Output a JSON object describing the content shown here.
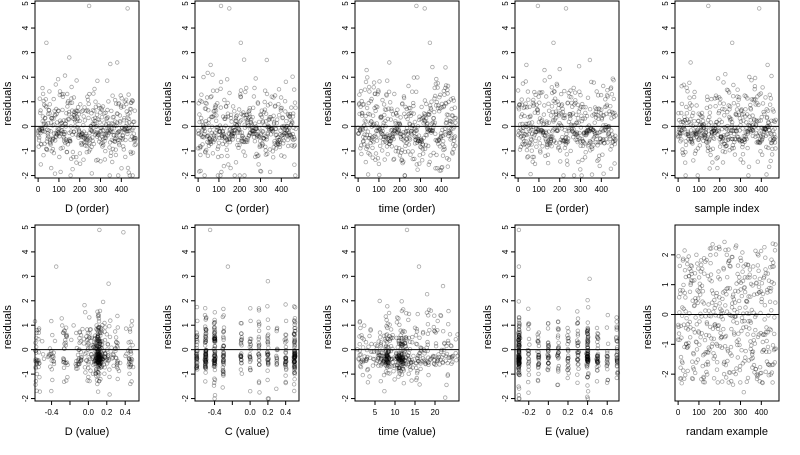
{
  "figure": {
    "description_free": true
  },
  "chart_data": [
    {
      "type": "scatter",
      "xlabel": "D (order)",
      "ylabel": "residuals",
      "xlim": [
        -15,
        485
      ],
      "ylim": [
        -2.1,
        5.1
      ],
      "xticks": [
        0,
        100,
        200,
        300,
        400
      ],
      "yticks": [
        -2,
        -1,
        0,
        1,
        2,
        3,
        4,
        5
      ],
      "hline": 0,
      "n_points": 470,
      "seed": 11,
      "pattern": "order_wave",
      "outliers": [
        [
          40,
          3.4
        ],
        [
          245,
          4.9
        ],
        [
          430,
          4.8
        ],
        [
          150,
          2.8
        ],
        [
          380,
          2.6
        ]
      ]
    },
    {
      "type": "scatter",
      "xlabel": "C (order)",
      "ylabel": "residuals",
      "xlim": [
        -15,
        485
      ],
      "ylim": [
        -2.1,
        5.1
      ],
      "xticks": [
        0,
        100,
        200,
        300,
        400
      ],
      "yticks": [
        -2,
        -1,
        0,
        1,
        2,
        3,
        4,
        5
      ],
      "hline": 0,
      "n_points": 470,
      "seed": 23,
      "pattern": "order_wave",
      "outliers": [
        [
          110,
          4.9
        ],
        [
          150,
          4.8
        ],
        [
          205,
          3.4
        ],
        [
          330,
          2.7
        ],
        [
          60,
          2.5
        ]
      ]
    },
    {
      "type": "scatter",
      "xlabel": "time (order)",
      "ylabel": "residuals",
      "xlim": [
        -15,
        485
      ],
      "ylim": [
        -2.1,
        5.1
      ],
      "xticks": [
        0,
        100,
        200,
        300,
        400
      ],
      "yticks": [
        -2,
        -1,
        0,
        1,
        2,
        3,
        4,
        5
      ],
      "hline": 0,
      "n_points": 470,
      "seed": 37,
      "pattern": "order_wave",
      "outliers": [
        [
          280,
          4.9
        ],
        [
          320,
          4.8
        ],
        [
          345,
          3.4
        ],
        [
          150,
          2.6
        ],
        [
          420,
          2.4
        ]
      ]
    },
    {
      "type": "scatter",
      "xlabel": "E (order)",
      "ylabel": "residuals",
      "xlim": [
        -15,
        485
      ],
      "ylim": [
        -2.1,
        5.1
      ],
      "xticks": [
        0,
        100,
        200,
        300,
        400
      ],
      "yticks": [
        -2,
        -1,
        0,
        1,
        2,
        3,
        4,
        5
      ],
      "hline": 0,
      "n_points": 470,
      "seed": 41,
      "pattern": "order_wave",
      "outliers": [
        [
          95,
          4.9
        ],
        [
          170,
          3.4
        ],
        [
          230,
          4.8
        ],
        [
          345,
          2.7
        ],
        [
          40,
          2.5
        ]
      ]
    },
    {
      "type": "scatter",
      "xlabel": "sample index",
      "ylabel": "residuals",
      "xlim": [
        -15,
        485
      ],
      "ylim": [
        -2.1,
        5.1
      ],
      "xticks": [
        0,
        100,
        200,
        300,
        400
      ],
      "yticks": [
        -2,
        -1,
        0,
        1,
        2,
        3,
        4,
        5
      ],
      "hline": 0,
      "n_points": 470,
      "seed": 53,
      "pattern": "order_wave",
      "outliers": [
        [
          145,
          4.9
        ],
        [
          390,
          4.8
        ],
        [
          260,
          3.4
        ],
        [
          60,
          2.6
        ],
        [
          430,
          2.5
        ]
      ]
    },
    {
      "type": "scatter",
      "xlabel": "D (value)",
      "ylabel": "residuals",
      "xlim": [
        -0.58,
        0.55
      ],
      "ylim": [
        -2.1,
        5.1
      ],
      "xticks": [
        -0.4,
        -0.2,
        0.0,
        0.2,
        0.4
      ],
      "xticklabels": [
        "-0.4",
        "",
        "0.0",
        "0.2",
        "0.4"
      ],
      "yticks": [
        -2,
        -1,
        0,
        1,
        2,
        3,
        4,
        5
      ],
      "hline": 0,
      "n_points": 470,
      "seed": 61,
      "pattern": "value_spread",
      "cluster_x": [
        -0.55,
        -0.4,
        -0.25,
        -0.1,
        0.0,
        0.1,
        0.2,
        0.3,
        0.45
      ],
      "dense_x": [
        0.1,
        0.12
      ],
      "outliers": [
        [
          0.12,
          4.9
        ],
        [
          0.38,
          4.8
        ],
        [
          -0.35,
          3.4
        ],
        [
          0.22,
          2.7
        ]
      ]
    },
    {
      "type": "scatter",
      "xlabel": "C (value)",
      "ylabel": "residuals",
      "xlim": [
        -0.62,
        0.55
      ],
      "ylim": [
        -2.1,
        5.1
      ],
      "xticks": [
        -0.4,
        -0.2,
        0.0,
        0.2,
        0.4
      ],
      "xticklabels": [
        "-0.4",
        "",
        "0.0",
        "0.2",
        "0.4"
      ],
      "yticks": [
        -2,
        -1,
        0,
        1,
        2,
        3,
        4,
        5
      ],
      "hline": 0,
      "n_points": 470,
      "seed": 71,
      "pattern": "value_columns",
      "cluster_x": [
        -0.6,
        -0.5,
        -0.4,
        -0.3,
        -0.1,
        0.0,
        0.1,
        0.2,
        0.3,
        0.4,
        0.5
      ],
      "dense_x": [
        -0.5,
        -0.4,
        0.5
      ],
      "outliers": [
        [
          -0.45,
          4.9
        ],
        [
          -0.25,
          3.4
        ],
        [
          0.2,
          2.8
        ]
      ]
    },
    {
      "type": "scatter",
      "xlabel": "time (value)",
      "ylabel": "residuals",
      "xlim": [
        0,
        26
      ],
      "ylim": [
        -2.1,
        5.1
      ],
      "xticks": [
        5,
        10,
        15,
        20
      ],
      "yticks": [
        -2,
        -1,
        0,
        1,
        2,
        3,
        4,
        5
      ],
      "hline": 0,
      "n_points": 470,
      "seed": 83,
      "pattern": "value_spread",
      "cluster_x": [
        1,
        2,
        3,
        4,
        5,
        6,
        7,
        8,
        9,
        10,
        11,
        12,
        13,
        14,
        15,
        16,
        17,
        18,
        19,
        20,
        21,
        22,
        23,
        24,
        25
      ],
      "dense_x": [
        8,
        11,
        12
      ],
      "outliers": [
        [
          13,
          4.9
        ],
        [
          16,
          3.4
        ],
        [
          22,
          2.6
        ]
      ]
    },
    {
      "type": "scatter",
      "xlabel": "E (value)",
      "ylabel": "residuals",
      "xlim": [
        -0.34,
        0.72
      ],
      "ylim": [
        -2.1,
        5.1
      ],
      "xticks": [
        -0.2,
        0.0,
        0.2,
        0.4,
        0.6
      ],
      "yticks": [
        -2,
        -1,
        0,
        1,
        2,
        3,
        4,
        5
      ],
      "hline": 0,
      "n_points": 470,
      "seed": 97,
      "pattern": "value_columns",
      "cluster_x": [
        -0.3,
        -0.2,
        -0.1,
        0.0,
        0.1,
        0.2,
        0.3,
        0.4,
        0.5,
        0.6,
        0.7
      ],
      "dense_x": [
        -0.3,
        -0.3,
        0.4
      ],
      "outliers": [
        [
          -0.3,
          4.9
        ],
        [
          -0.3,
          3.4
        ],
        [
          0.42,
          2.9
        ]
      ]
    },
    {
      "type": "scatter",
      "xlabel": "randam example",
      "ylabel": "residuals",
      "xlim": [
        -15,
        485
      ],
      "ylim": [
        -2.9,
        3.0
      ],
      "xticks": [
        0,
        100,
        200,
        300,
        400
      ],
      "yticks": [
        -2,
        -1,
        0,
        1,
        2
      ],
      "hline": 0,
      "n_points": 470,
      "seed": 101,
      "pattern": "uniform_noise",
      "outliers": []
    }
  ]
}
